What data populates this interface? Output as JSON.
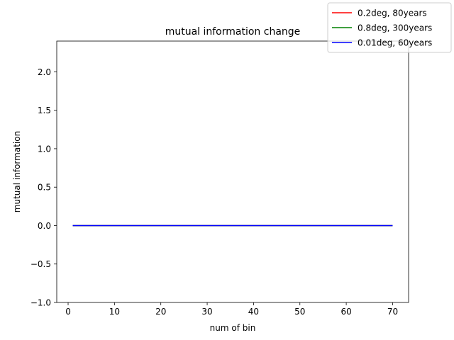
{
  "chart_data": {
    "type": "line",
    "title": "mutual information change",
    "xlabel": "num of bin",
    "ylabel": "mutual information",
    "xlim": [
      -2.45,
      73.45
    ],
    "ylim": [
      -1.0,
      2.4
    ],
    "xticks": [
      0,
      10,
      20,
      30,
      40,
      50,
      60,
      70
    ],
    "xtick_labels": [
      "0",
      "10",
      "20",
      "30",
      "40",
      "50",
      "60",
      "70"
    ],
    "yticks": [
      -1.0,
      -0.5,
      0.0,
      0.5,
      1.0,
      1.5,
      2.0
    ],
    "ytick_labels": [
      "−1.0",
      "−0.5",
      "0.0",
      "0.5",
      "1.0",
      "1.5",
      "2.0"
    ],
    "grid": false,
    "legend_position": "top-right",
    "series": [
      {
        "name": "0.2deg, 80years",
        "color": "#ff0000",
        "x": [
          1,
          70
        ],
        "y": [
          0.0,
          0.0
        ]
      },
      {
        "name": "0.8deg, 300years",
        "color": "#008000",
        "x": [
          1,
          70
        ],
        "y": [
          0.0,
          0.0
        ]
      },
      {
        "name": "0.01deg, 60years",
        "color": "#0000ff",
        "x": [
          1,
          70
        ],
        "y": [
          0.0,
          0.0
        ]
      }
    ]
  }
}
